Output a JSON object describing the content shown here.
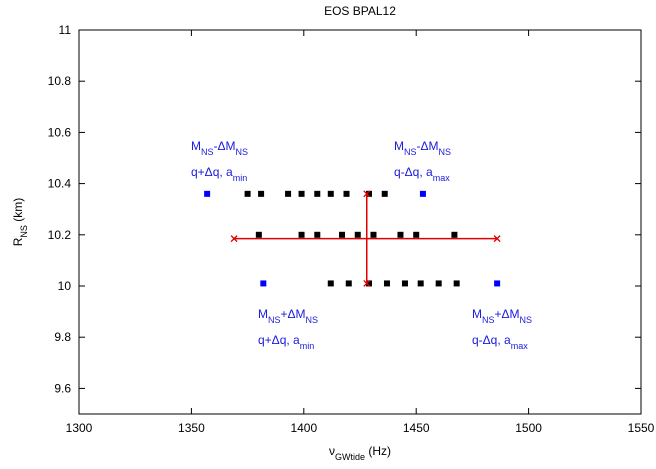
{
  "chart_data": {
    "type": "scatter",
    "title": "EOS BPAL12",
    "xlabel": [
      "ν",
      "GWtide",
      " (Hz)"
    ],
    "ylabel": [
      "R",
      "NS",
      " (km)"
    ],
    "xlim": [
      1300,
      1550
    ],
    "xticks": [
      1300,
      1350,
      1400,
      1450,
      1500,
      1550
    ],
    "ylim": [
      9.5,
      11
    ],
    "yticks": [
      9.6,
      9.8,
      10,
      10.2,
      10.4,
      10.6,
      10.8,
      11
    ],
    "series": [
      {
        "color": "#000000",
        "x": [
          1375,
          1381,
          1393,
          1399,
          1406,
          1412,
          1419,
          1429,
          1436,
          1380,
          1399,
          1406,
          1417,
          1424,
          1431,
          1443,
          1450,
          1467,
          1412,
          1420,
          1429,
          1437,
          1445,
          1452,
          1460,
          1468
        ],
        "y": [
          10.36,
          10.36,
          10.36,
          10.36,
          10.36,
          10.36,
          10.36,
          10.36,
          10.36,
          10.2,
          10.2,
          10.2,
          10.2,
          10.2,
          10.2,
          10.2,
          10.2,
          10.2,
          10.01,
          10.01,
          10.01,
          10.01,
          10.01,
          10.01,
          10.01,
          10.01
        ]
      },
      {
        "color": "#0000ff",
        "x": [
          1357,
          1453,
          1382,
          1486
        ],
        "y": [
          10.36,
          10.36,
          10.01,
          10.01
        ]
      }
    ],
    "error_bar": {
      "color": "#e00000",
      "x": 1428,
      "y": 10.185,
      "xlow": 1369,
      "xhigh": 1486,
      "ylow": 10.01,
      "yhigh": 10.36
    },
    "annotations": [
      {
        "color": "#1a1adc",
        "lines": [
          [
            "M",
            "NS",
            "-ΔM",
            "NS"
          ],
          [
            "q+Δq, a",
            "min"
          ]
        ]
      },
      {
        "color": "#1a1adc",
        "lines": [
          [
            "M",
            "NS",
            "-ΔM",
            "NS"
          ],
          [
            "q-Δq, a",
            "max"
          ]
        ]
      },
      {
        "color": "#1a1adc",
        "lines": [
          [
            "M",
            "NS",
            "+ΔM",
            "NS"
          ],
          [
            "q+Δq, a",
            "min"
          ]
        ]
      },
      {
        "color": "#1a1adc",
        "lines": [
          [
            "M",
            "NS",
            "+ΔM",
            "NS"
          ],
          [
            "q-Δq, a",
            "max"
          ]
        ]
      }
    ]
  }
}
